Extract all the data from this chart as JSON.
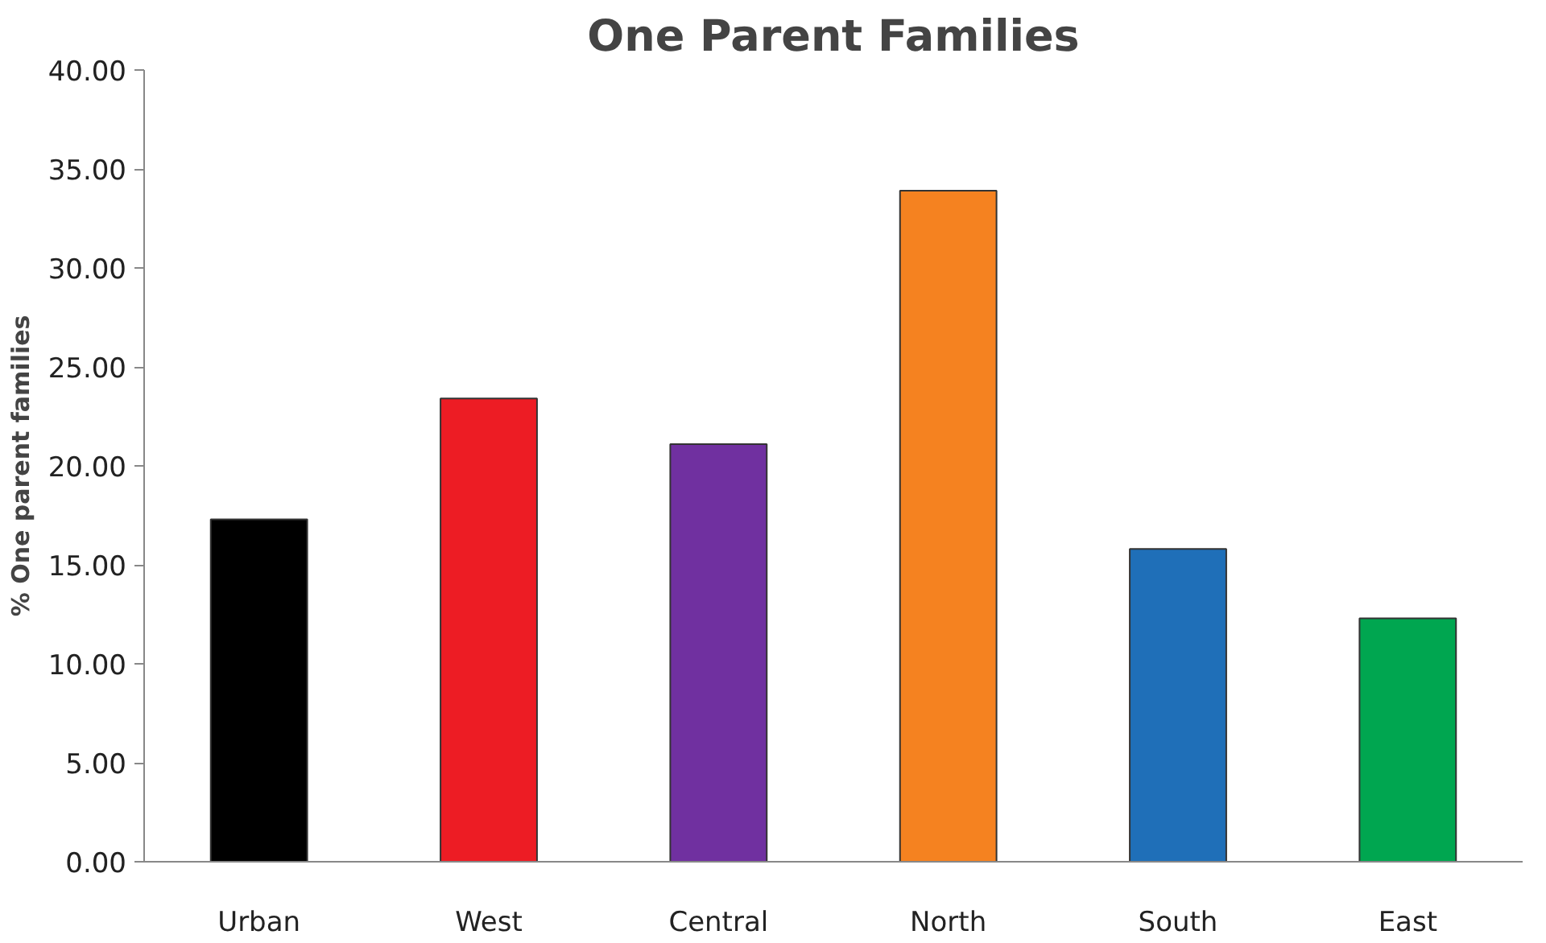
{
  "chart_data": {
    "type": "bar",
    "title": "One Parent Families",
    "ylabel": "% One parent families",
    "categories": [
      "Urban",
      "West",
      "Central",
      "North",
      "South",
      "East"
    ],
    "values": [
      17.3,
      23.4,
      21.1,
      33.9,
      15.8,
      12.3
    ],
    "colors": [
      "#000000",
      "#ed1c24",
      "#7030a0",
      "#f58220",
      "#1f6fb8",
      "#00a650"
    ],
    "ylim": [
      0,
      40
    ],
    "yticks": [
      {
        "value": 0,
        "label": "0.00"
      },
      {
        "value": 5,
        "label": "5.00"
      },
      {
        "value": 10,
        "label": "10.00"
      },
      {
        "value": 15,
        "label": "15.00"
      },
      {
        "value": 20,
        "label": "20.00"
      },
      {
        "value": 25,
        "label": "25.00"
      },
      {
        "value": 30,
        "label": "30.00"
      },
      {
        "value": 35,
        "label": "35.00"
      },
      {
        "value": 40,
        "label": "40.00"
      }
    ],
    "grid": false,
    "legend": false
  }
}
